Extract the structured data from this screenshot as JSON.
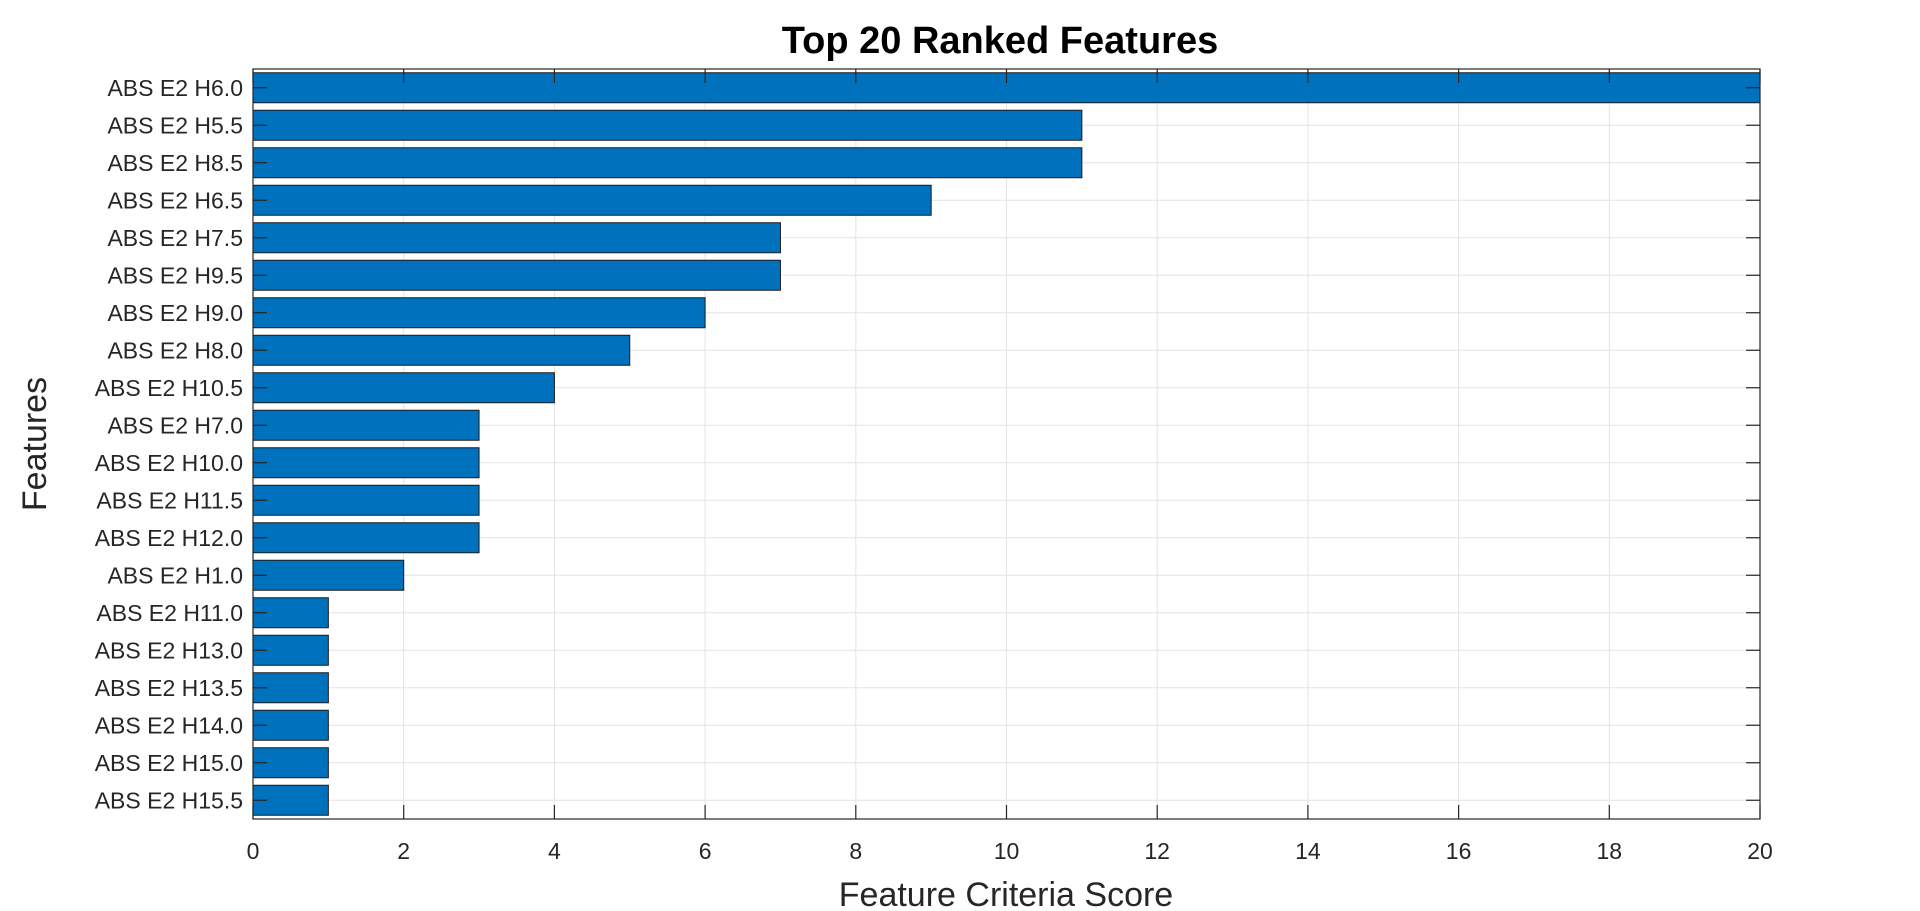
{
  "chart_data": {
    "type": "bar",
    "orientation": "horizontal",
    "title": "Top 20 Ranked Features",
    "xlabel": "Feature Criteria Score",
    "ylabel": "Features",
    "xlim": [
      0,
      20
    ],
    "xticks": [
      0,
      2,
      4,
      6,
      8,
      10,
      12,
      14,
      16,
      18,
      20
    ],
    "grid": true,
    "legend": "none",
    "bar_color": "#0072BD",
    "categories": [
      "ABS E2 H6.0",
      "ABS E2 H5.5",
      "ABS E2 H8.5",
      "ABS E2 H6.5",
      "ABS E2 H7.5",
      "ABS E2 H9.5",
      "ABS E2 H9.0",
      "ABS E2 H8.0",
      "ABS E2 H10.5",
      "ABS E2 H7.0",
      "ABS E2 H10.0",
      "ABS E2 H11.5",
      "ABS E2 H12.0",
      "ABS E2 H1.0",
      "ABS E2 H11.0",
      "ABS E2 H13.0",
      "ABS E2 H13.5",
      "ABS E2 H14.0",
      "ABS E2 H15.0",
      "ABS E2 H15.5"
    ],
    "values": [
      20,
      11,
      11,
      9,
      7,
      7,
      6,
      5,
      4,
      3,
      3,
      3,
      3,
      2,
      1,
      1,
      1,
      1,
      1,
      1
    ]
  }
}
